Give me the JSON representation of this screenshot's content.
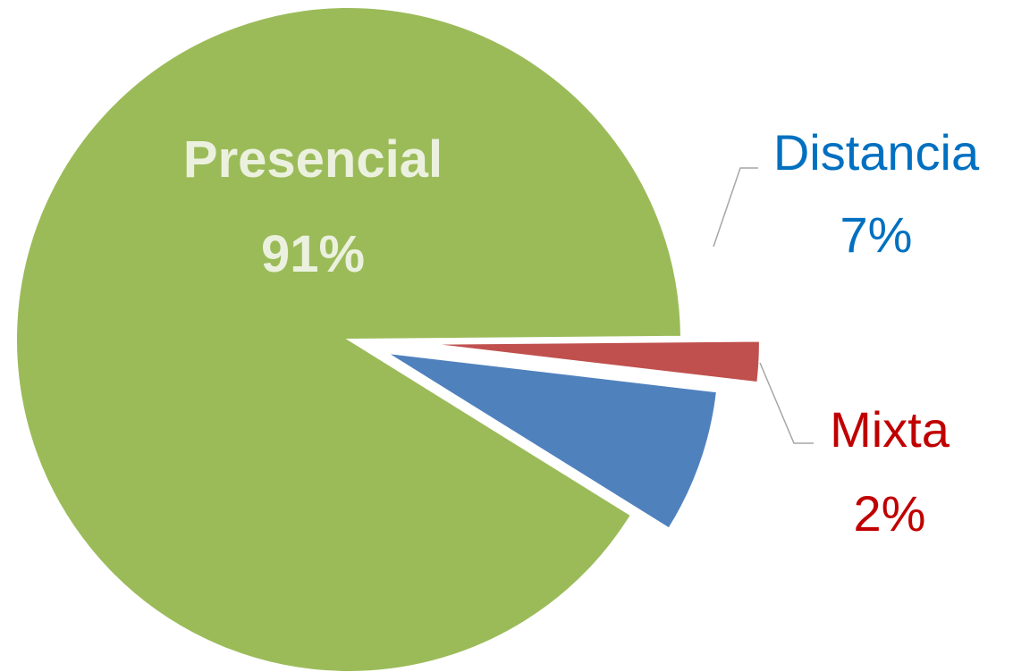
{
  "chart_data": {
    "type": "pie",
    "title": "",
    "slices": [
      {
        "label": "Presencial",
        "percent_label": "91%",
        "value": 91,
        "color": "#9BBB59",
        "text_color": "#EBF1DE"
      },
      {
        "label": "Distancia",
        "percent_label": "7%",
        "value": 7,
        "color": "#4F81BD",
        "text_color": "#0070C0"
      },
      {
        "label": "Mixta",
        "percent_label": "2%",
        "value": 2,
        "color": "#C0504D",
        "text_color": "#C00000"
      }
    ],
    "legend": "none",
    "labels": "data labels with leader lines"
  }
}
